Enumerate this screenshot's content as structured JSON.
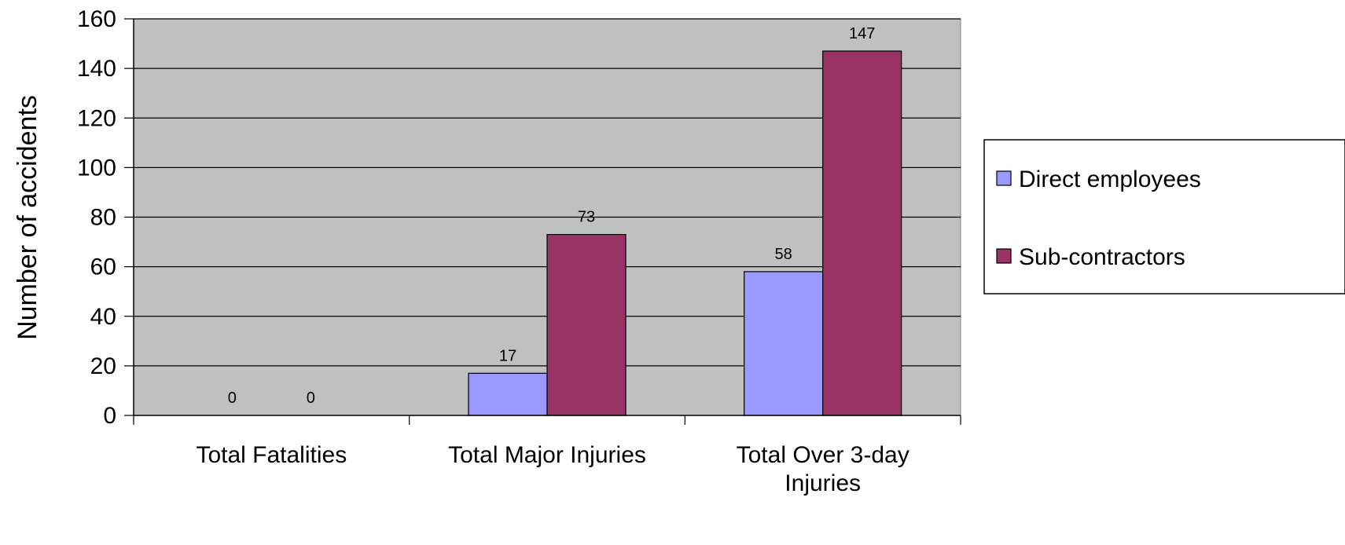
{
  "chart_data": {
    "type": "bar",
    "title": "",
    "xlabel": "",
    "ylabel": "Number of accidents",
    "ylim": [
      0,
      160
    ],
    "yticks": [
      0,
      20,
      40,
      60,
      80,
      100,
      120,
      140,
      160
    ],
    "categories": [
      [
        "Total Fatalities"
      ],
      [
        "Total Major Injuries"
      ],
      [
        "Total Over 3-day",
        "Injuries"
      ]
    ],
    "series": [
      {
        "name": "Direct employees",
        "values": [
          0,
          17,
          58
        ],
        "color": "#9999ff"
      },
      {
        "name": "Sub-contractors",
        "values": [
          0,
          73,
          147
        ],
        "color": "#993366"
      }
    ],
    "grid": true,
    "plot_background": "#c0c0c0",
    "legend_position": "right"
  }
}
